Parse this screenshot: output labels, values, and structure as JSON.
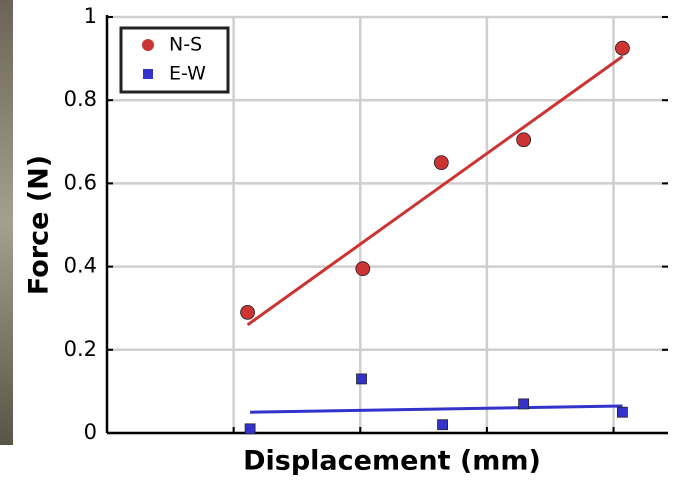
{
  "chart_data": {
    "type": "scatter",
    "x_label": "Displacement (mm)",
    "y_label": "Force (N)",
    "xlim": [
      0,
      4.43
    ],
    "xticks": [
      1,
      2,
      3,
      4
    ],
    "ylim": [
      0,
      1
    ],
    "yticks": [
      0,
      0.2,
      0.4,
      0.6,
      0.8,
      1
    ],
    "grid": true,
    "legend": "upper left",
    "series": [
      {
        "name": "N-S",
        "color": "#cc3333",
        "marker": "circle",
        "x": [
          1.11,
          2.02,
          2.64,
          3.29,
          4.07
        ],
        "values": [
          0.29,
          0.395,
          0.65,
          0.705,
          0.925
        ],
        "fit": {
          "x": [
            1.11,
            4.07
          ],
          "values": [
            0.26,
            0.905
          ]
        }
      },
      {
        "name": "E-W",
        "color": "#3333cc",
        "marker": "square",
        "x": [
          1.13,
          2.01,
          2.65,
          3.29,
          4.07
        ],
        "values": [
          0.01,
          0.13,
          0.02,
          0.07,
          0.05
        ],
        "fit": {
          "x": [
            1.13,
            4.07
          ],
          "values": [
            0.05,
            0.065
          ]
        }
      }
    ]
  }
}
